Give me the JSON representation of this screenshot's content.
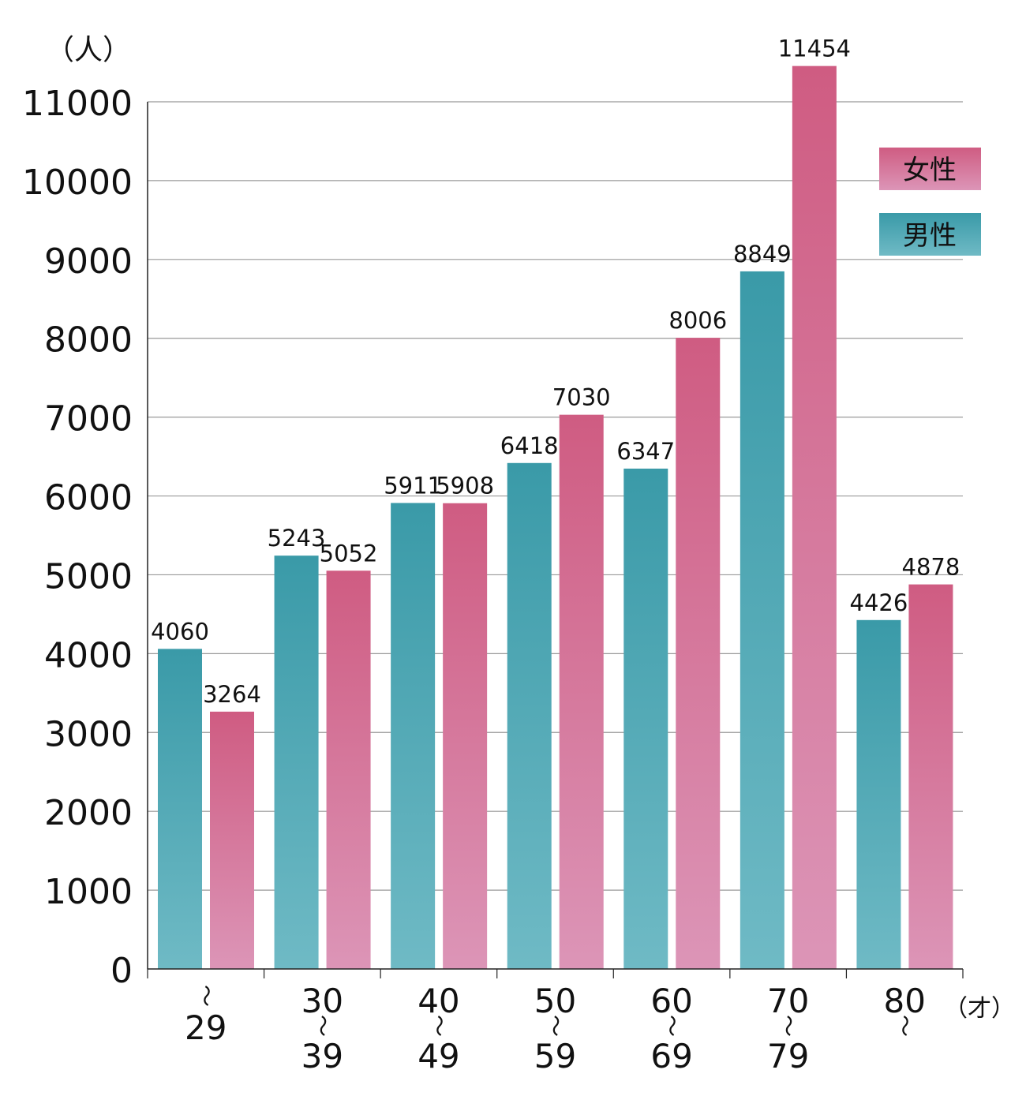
{
  "chart_data": {
    "type": "bar",
    "title": "",
    "ylabel": "（人）",
    "xlabel": "（才）",
    "ylim": [
      0,
      11000
    ],
    "yticks": [
      0,
      1000,
      2000,
      3000,
      4000,
      5000,
      6000,
      7000,
      8000,
      9000,
      10000,
      11000
    ],
    "grid": true,
    "legend_position": "right",
    "range_separator": "〜",
    "categories": [
      {
        "from": "",
        "to": "29"
      },
      {
        "from": "30",
        "to": "39"
      },
      {
        "from": "40",
        "to": "49"
      },
      {
        "from": "50",
        "to": "59"
      },
      {
        "from": "60",
        "to": "69"
      },
      {
        "from": "70",
        "to": "79"
      },
      {
        "from": "80",
        "to": ""
      }
    ],
    "series": [
      {
        "name": "男性",
        "key": "male",
        "color_top": "#3a9aa8",
        "color_bottom": "#6fbac5",
        "values": [
          4060,
          5243,
          5911,
          6418,
          6347,
          8849,
          4426
        ]
      },
      {
        "name": "女性",
        "key": "female",
        "color_top": "#cf5c82",
        "color_bottom": "#dc95b7",
        "values": [
          3264,
          5052,
          5908,
          7030,
          8006,
          11454,
          4878
        ]
      }
    ]
  }
}
